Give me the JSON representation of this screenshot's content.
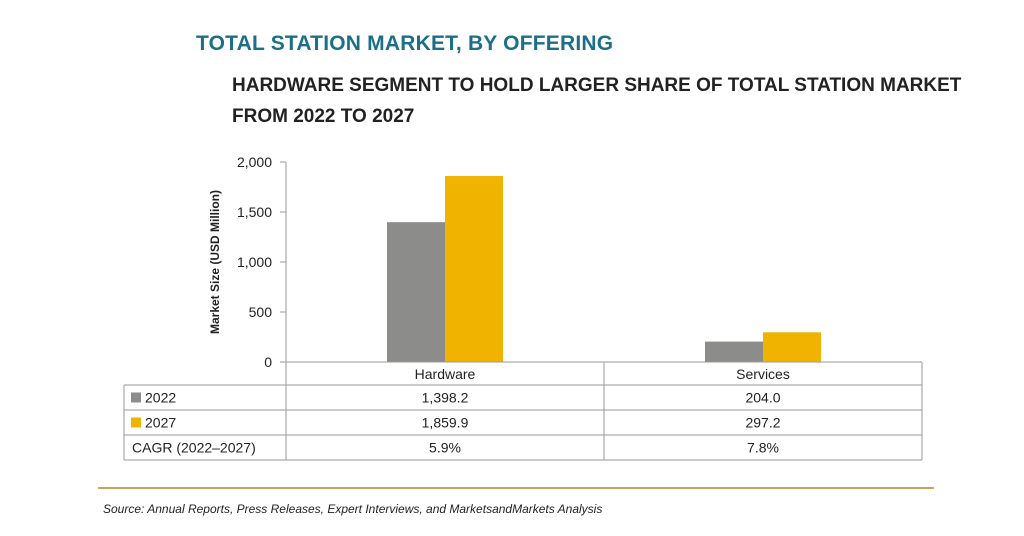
{
  "title": "TOTAL STATION MARKET, BY OFFERING",
  "subtitle_line1": "HARDWARE SEGMENT TO HOLD LARGER SHARE OF TOTAL STATION MARKET",
  "subtitle_line2": "FROM 2022 TO 2027",
  "source": "Source: Annual Reports, Press Releases, Expert Interviews, and MarketsandMarkets Analysis",
  "colors": {
    "series_2022": "#8c8c8a",
    "series_2027": "#f0b400",
    "title": "#1b6f86"
  },
  "chart_data": {
    "type": "bar",
    "categories": [
      "Hardware",
      "Services"
    ],
    "series": [
      {
        "name": "2022",
        "values": [
          1398.2,
          204.0
        ],
        "labels": [
          "1,398.2",
          "204.0"
        ]
      },
      {
        "name": "2027",
        "values": [
          1859.9,
          297.2
        ],
        "labels": [
          "1,859.9",
          "297.2"
        ]
      }
    ],
    "extra_row": {
      "name": "CAGR (2022–2027)",
      "values": [
        "5.9%",
        "7.8%"
      ]
    },
    "ylabel": "Market Size (USD Million)",
    "yticks": [
      "0",
      "500",
      "1,000",
      "1,500",
      "2,000"
    ],
    "ytick_values": [
      0,
      500,
      1000,
      1500,
      2000
    ],
    "ylim": [
      0,
      2000
    ],
    "grid": false
  }
}
